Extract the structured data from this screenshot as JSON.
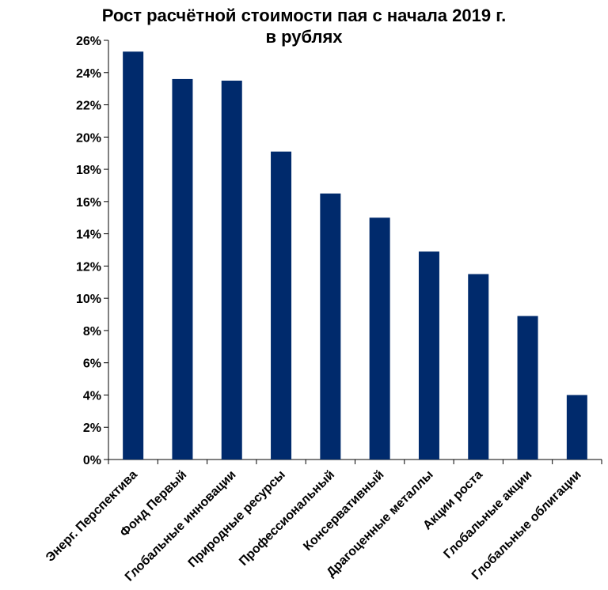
{
  "chart_data": {
    "type": "bar",
    "title_lines": [
      "Рост расчётной стоимости пая с начала 2019 г.",
      "в рублях"
    ],
    "categories": [
      "Энерг. Перспектива",
      "Фонд Первый",
      "Глобальные инновации",
      "Природные ресурсы",
      "Профессиональный",
      "Консервативный",
      "Драгоценные металлы",
      "Акции роста",
      "Глобальные акции",
      "Глобальные облигации"
    ],
    "series": [
      {
        "values": [
          25.3,
          23.6,
          23.5,
          19.1,
          16.5,
          15.0,
          12.9,
          11.5,
          8.9,
          4.0
        ]
      }
    ],
    "ylim": [
      0,
      26
    ],
    "y_ticks": [
      0,
      2,
      4,
      6,
      8,
      10,
      12,
      14,
      16,
      18,
      20,
      22,
      24,
      26
    ],
    "y_tick_format": "percent",
    "bar_color": "#002A6C",
    "grid": false,
    "legend": "none"
  }
}
